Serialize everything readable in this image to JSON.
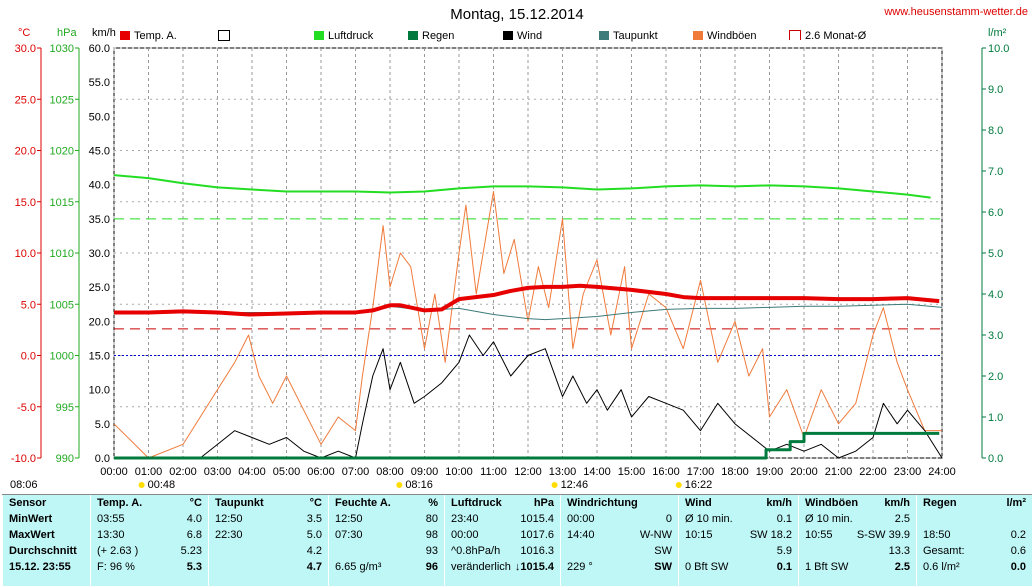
{
  "title": "Montag, 15.12.2014",
  "site": "www.heusenstamm-wetter.de",
  "axis_units": {
    "temp": "°C",
    "press": "hPa",
    "wind": "km/h",
    "rain": "l/m²"
  },
  "colors": {
    "temp": "#e60000",
    "pressure": "#22dd22",
    "rain": "#007a3d",
    "wind": "#000000",
    "dew": "#3d7a7a",
    "gust": "#f07a3a",
    "avg": "#cc0000",
    "freeze": "#0000cc"
  },
  "legend": [
    {
      "label": "Temp. A.",
      "color": "#e60000",
      "kind": "fill"
    },
    {
      "label": "",
      "color": "#ffffff",
      "kind": "box"
    },
    {
      "label": "Luftdruck",
      "color": "#22dd22",
      "kind": "fill"
    },
    {
      "label": "Regen",
      "color": "#007a3d",
      "kind": "fill"
    },
    {
      "label": "Wind",
      "color": "#000000",
      "kind": "fill"
    },
    {
      "label": "Taupunkt",
      "color": "#3d7a7a",
      "kind": "fill"
    },
    {
      "label": "Windböen",
      "color": "#f07a3a",
      "kind": "fill"
    },
    {
      "label": "2.6 Monat-Ø",
      "color": "#cc0000",
      "kind": "bracket"
    }
  ],
  "chart_data": {
    "type": "line",
    "x_ticks": [
      "00:00",
      "01:00",
      "02:00",
      "03:00",
      "04:00",
      "05:00",
      "06:00",
      "07:00",
      "08:00",
      "09:00",
      "10:00",
      "11:00",
      "12:00",
      "13:00",
      "14:00",
      "15:00",
      "16:00",
      "17:00",
      "18:00",
      "19:00",
      "20:00",
      "21:00",
      "22:00",
      "23:00",
      "24:00"
    ],
    "temp_ticks": [
      "30.0",
      "25.0",
      "20.0",
      "15.0",
      "10.0",
      "5.0",
      "0.0",
      "-5.0",
      "-10.0"
    ],
    "press_ticks": [
      "1030",
      "1025",
      "1020",
      "1015",
      "1010",
      "1005",
      "1000",
      "995",
      "990"
    ],
    "wind_ticks": [
      "60.0",
      "55.0",
      "50.0",
      "45.0",
      "40.0",
      "35.0",
      "30.0",
      "25.0",
      "20.0",
      "15.0",
      "10.0",
      "5.0",
      "0.0"
    ],
    "rain_ticks": [
      "10.0",
      "9.0",
      "8.0",
      "7.0",
      "6.0",
      "5.0",
      "4.0",
      "3.0",
      "2.0",
      "1.0",
      "0.0"
    ],
    "ylim_temp": [
      -10,
      30
    ],
    "ylim_wind": [
      0,
      60
    ],
    "ylim_rain": [
      0,
      10
    ],
    "monthly_avg_temp": 2.6,
    "series": [
      {
        "name": "Temp. A.",
        "axis": "temp",
        "x": [
          0,
          1,
          2,
          3,
          3.92,
          5,
          6,
          7,
          7.5,
          8,
          8.3,
          9,
          9.5,
          10,
          11,
          11.5,
          12,
          12.5,
          13,
          13.5,
          14,
          15,
          16,
          16.5,
          17,
          18,
          19,
          20,
          21,
          22,
          23,
          23.92
        ],
        "y": [
          4.2,
          4.2,
          4.3,
          4.2,
          4.0,
          4.1,
          4.2,
          4.2,
          4.4,
          4.9,
          4.9,
          4.4,
          4.5,
          5.5,
          5.9,
          6.3,
          6.6,
          6.7,
          6.7,
          6.8,
          6.7,
          6.4,
          6.0,
          5.7,
          5.6,
          5.6,
          5.6,
          5.6,
          5.5,
          5.5,
          5.6,
          5.3
        ]
      },
      {
        "name": "Luftdruck",
        "axis": "press",
        "x": [
          0,
          1,
          2,
          3,
          4,
          5,
          6,
          7,
          8,
          9,
          10,
          11,
          12,
          13,
          14,
          15,
          16,
          17,
          18,
          19,
          20,
          21,
          22,
          23,
          23.67
        ],
        "y": [
          1017.6,
          1017.3,
          1016.8,
          1016.4,
          1016.2,
          1016.0,
          1016.0,
          1016.0,
          1015.9,
          1016.0,
          1016.3,
          1016.5,
          1016.5,
          1016.4,
          1016.2,
          1016.3,
          1016.5,
          1016.6,
          1016.5,
          1016.6,
          1016.5,
          1016.3,
          1016.0,
          1015.7,
          1015.4
        ]
      },
      {
        "name": "Taupunkt",
        "axis": "temp",
        "x": [
          0,
          7,
          7.5,
          8,
          9,
          10,
          11,
          12,
          12.5,
          13,
          14,
          15,
          16,
          17,
          18,
          19,
          20,
          21,
          22,
          23,
          24
        ],
        "y": [
          4.2,
          4.2,
          4.4,
          4.8,
          4.4,
          4.6,
          4.0,
          3.6,
          3.5,
          3.6,
          3.8,
          4.2,
          4.5,
          4.6,
          4.6,
          4.7,
          4.8,
          4.8,
          4.9,
          5.0,
          4.7
        ]
      },
      {
        "name": "Wind",
        "axis": "wind",
        "x": [
          0,
          2.5,
          3,
          3.5,
          4,
          4.5,
          5,
          5.5,
          6,
          6.5,
          7,
          7.2,
          7.5,
          7.8,
          8,
          8.3,
          8.7,
          9,
          9.5,
          10,
          10.3,
          10.7,
          11,
          11.5,
          12,
          12.5,
          13,
          13.3,
          13.7,
          14,
          14.3,
          14.7,
          15,
          15.5,
          16,
          16.5,
          17,
          17.5,
          18,
          18.5,
          19,
          19.5,
          20,
          20.5,
          21,
          21.5,
          22,
          22.3,
          22.7,
          23,
          23.5,
          24
        ],
        "y": [
          0,
          0,
          2,
          4,
          3,
          2,
          3,
          1,
          0,
          1,
          0,
          5,
          12,
          16,
          10,
          14,
          8,
          9,
          11,
          14,
          18,
          15,
          17,
          12,
          15,
          16,
          9,
          12,
          8,
          10,
          7,
          10,
          6,
          9,
          8,
          7,
          4,
          8,
          5,
          3,
          1,
          2,
          1,
          2,
          0,
          1,
          3,
          8,
          5,
          7,
          4,
          0
        ]
      },
      {
        "name": "Windböen",
        "axis": "wind",
        "x": [
          0,
          1,
          2,
          2.5,
          3,
          3.5,
          3.9,
          4.2,
          4.6,
          5,
          5.5,
          6,
          6.5,
          7,
          7.2,
          7.5,
          7.8,
          8,
          8.3,
          8.6,
          9,
          9.3,
          9.6,
          10,
          10.2,
          10.5,
          10.8,
          11,
          11.3,
          11.6,
          12,
          12.3,
          12.6,
          13,
          13.3,
          13.6,
          14,
          14.4,
          14.8,
          15,
          15.5,
          16,
          16.5,
          17,
          17.5,
          18,
          18.4,
          18.8,
          19,
          19.5,
          20,
          20.5,
          21,
          21.5,
          22,
          22.3,
          22.7,
          23,
          23.5,
          24
        ],
        "y": [
          5,
          0,
          2,
          6,
          10,
          14,
          18,
          12,
          8,
          12,
          7,
          2,
          6,
          4,
          12,
          22,
          34,
          25,
          30,
          28,
          16,
          24,
          14,
          30,
          37,
          24,
          33,
          39,
          27,
          32,
          20,
          28,
          22,
          35,
          16,
          24,
          29,
          18,
          28,
          16,
          24,
          22,
          16,
          26,
          14,
          20,
          12,
          16,
          6,
          10,
          3,
          10,
          5,
          8,
          18,
          22,
          14,
          10,
          4,
          4
        ]
      },
      {
        "name": "Regen",
        "axis": "rain",
        "x": [
          0,
          18.5,
          18.9,
          19,
          19.5,
          19.6,
          19.8,
          20,
          23.92
        ],
        "y": [
          0,
          0,
          0.2,
          0.2,
          0.2,
          0.4,
          0.4,
          0.6,
          0.6
        ]
      }
    ],
    "event_labels": [
      {
        "time": "08:06",
        "hour": 0.1
      },
      {
        "time": "00:48",
        "hour": 0.8
      },
      {
        "time": "08:16",
        "hour": 8.27
      },
      {
        "time": "12:46",
        "hour": 12.77
      },
      {
        "time": "16:22",
        "hour": 16.37
      }
    ]
  },
  "table": {
    "columns": [
      {
        "title": "Sensor",
        "unit": "",
        "rows": [
          [
            "MinWert",
            ""
          ],
          [
            "MaxWert",
            ""
          ],
          [
            "Durchschnitt",
            ""
          ],
          [
            "15.12. 23:55",
            ""
          ]
        ]
      },
      {
        "title": "Temp. A.",
        "unit": "°C",
        "rows": [
          [
            "03:55",
            "4.0"
          ],
          [
            "13:30",
            "6.8"
          ],
          [
            "(+ 2.63 )",
            "5.23"
          ],
          [
            "F: 96 %",
            "5.3"
          ]
        ]
      },
      {
        "title": "Taupunkt",
        "unit": "°C",
        "rows": [
          [
            "12:50",
            "3.5"
          ],
          [
            "22:30",
            "5.0"
          ],
          [
            "",
            "4.2"
          ],
          [
            "",
            "4.7"
          ]
        ]
      },
      {
        "title": "Feuchte A.",
        "unit": "%",
        "rows": [
          [
            "12:50",
            "80"
          ],
          [
            "07:30",
            "98"
          ],
          [
            "",
            "93"
          ],
          [
            "6.65 g/m³",
            "96"
          ]
        ]
      },
      {
        "title": "Luftdruck",
        "unit": "hPa",
        "rows": [
          [
            "23:40",
            "1015.4"
          ],
          [
            "00:00",
            "1017.6"
          ],
          [
            "^0.8hPa/h",
            "1016.3"
          ],
          [
            "veränderlich",
            "↓1015.4"
          ]
        ]
      },
      {
        "title": "Windrichtung",
        "unit": "",
        "rows": [
          [
            "00:00",
            "0"
          ],
          [
            "14:40",
            "W-NW"
          ],
          [
            "",
            "SW"
          ],
          [
            "229 °",
            "SW"
          ]
        ]
      },
      {
        "title": "Wind",
        "unit": "km/h",
        "rows": [
          [
            "Ø 10 min.",
            "0.1"
          ],
          [
            "10:15",
            "SW 18.2"
          ],
          [
            "",
            "5.9"
          ],
          [
            "0 Bft SW",
            "0.1"
          ]
        ]
      },
      {
        "title": "Windböen",
        "unit": "km/h",
        "rows": [
          [
            "Ø 10 min.",
            "2.5"
          ],
          [
            "10:55",
            "S-SW 39.9"
          ],
          [
            "",
            "13.3"
          ],
          [
            "1 Bft SW",
            "2.5"
          ]
        ]
      },
      {
        "title": "Regen",
        "unit": "l/m²",
        "rows": [
          [
            "",
            ""
          ],
          [
            "18:50",
            "0.2"
          ],
          [
            "Gesamt:",
            "0.6"
          ],
          [
            "0.6 l/m²",
            "0.0"
          ]
        ]
      }
    ]
  }
}
